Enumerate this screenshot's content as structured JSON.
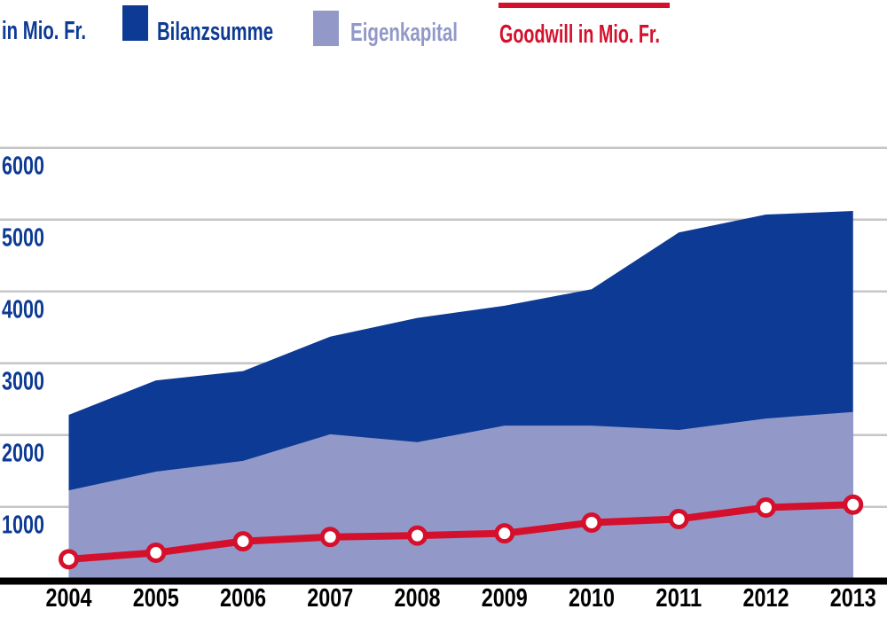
{
  "legend": {
    "unit_label": "in Mio. Fr.",
    "items": [
      {
        "label": "Bilanzsumme",
        "color": "#0D3A94",
        "swatch": "square"
      },
      {
        "label": "Eigenkapital",
        "color": "#9299C8",
        "swatch": "square"
      },
      {
        "label": "Goodwill in Mio. Fr.",
        "color": "#D5102D",
        "swatch": "line"
      }
    ]
  },
  "colors": {
    "bilanzsumme": "#0D3A94",
    "eigenkapital": "#9299C8",
    "goodwill": "#D5102D",
    "gridline": "#C6C6C6",
    "axis_labels_y": "#0D3A94",
    "axis_labels_x": "#000000",
    "axis_line": "#000000",
    "marker_fill": "#FFFFFF"
  },
  "chart_data": {
    "type": "area",
    "title": "",
    "ylabel": "in Mio. Fr.",
    "xlabel": "",
    "x": [
      2004,
      2005,
      2006,
      2007,
      2008,
      2009,
      2010,
      2011,
      2012,
      2013
    ],
    "series": [
      {
        "name": "Bilanzsumme",
        "type": "area",
        "color": "#0D3A94",
        "values": [
          2280,
          2760,
          2890,
          3370,
          3630,
          3800,
          4030,
          4820,
          5070,
          5120
        ]
      },
      {
        "name": "Eigenkapital",
        "type": "area",
        "color": "#9299C8",
        "values": [
          1230,
          1490,
          1640,
          2010,
          1900,
          2130,
          2130,
          2070,
          2230,
          2320
        ]
      },
      {
        "name": "Goodwill in Mio. Fr.",
        "type": "line",
        "color": "#D5102D",
        "values": [
          270,
          360,
          520,
          580,
          600,
          630,
          780,
          830,
          990,
          1030
        ]
      }
    ],
    "ylim": [
      0,
      6000
    ],
    "yticks": [
      1000,
      2000,
      3000,
      4000,
      5000,
      6000
    ],
    "grid": true,
    "legend_position": "top"
  }
}
